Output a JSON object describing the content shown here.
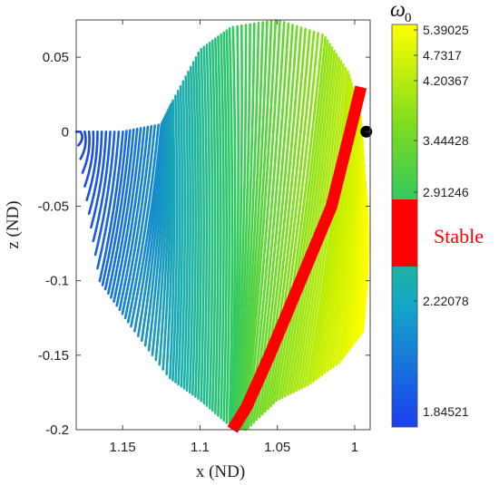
{
  "chart_data": {
    "type": "line",
    "title": "",
    "xlabel": "x (ND)",
    "ylabel": "z (ND)",
    "x_reversed": true,
    "xlim": [
      1.18,
      0.99
    ],
    "ylim": [
      -0.2,
      0.075
    ],
    "x_ticks": [
      1.15,
      1.1,
      1.05,
      1
    ],
    "x_tick_labels": [
      "1.15",
      "1.1",
      "1.05",
      "1"
    ],
    "y_ticks": [
      0.05,
      0,
      -0.05,
      -0.1,
      -0.15,
      -0.2
    ],
    "y_tick_labels": [
      "0.05",
      "0",
      "-0.05",
      "-0.1",
      "-0.15",
      "-0.2"
    ],
    "grid": false,
    "family": {
      "description_of_mark": "family of periodic orbit projections colored by omega_0",
      "orbit_count": 110,
      "outer_boundary_x": [
        1.18,
        1.15,
        1.125,
        1.118,
        1.1,
        1.08,
        1.05,
        1.02,
        1.004,
        0.996,
        0.992
      ],
      "outer_boundary_z": [
        0.0,
        0.0,
        0.005,
        0.02,
        0.055,
        0.07,
        0.075,
        0.065,
        0.04,
        0.01,
        -0.05
      ],
      "lower_boundary_x": [
        1.18,
        1.165,
        1.145,
        1.12,
        1.1,
        1.08,
        1.07,
        1.05,
        1.03,
        1.01,
        0.995
      ],
      "lower_boundary_z": [
        0.0,
        -0.1,
        -0.13,
        -0.165,
        -0.18,
        -0.198,
        -0.2,
        -0.18,
        -0.17,
        -0.155,
        -0.135
      ]
    },
    "stable_band": {
      "label": "Stable",
      "color": "#ff0000",
      "x": [
        0.996,
        1.003,
        1.015,
        1.035,
        1.055,
        1.07,
        1.079
      ],
      "z": [
        0.03,
        0.0,
        -0.05,
        -0.1,
        -0.15,
        -0.185,
        -0.2
      ]
    },
    "marker_point": {
      "x": 0.9925,
      "z": 0.0,
      "color": "#000000"
    },
    "colorbar": {
      "title": "ω",
      "subscript": "0",
      "ticks": [
        5.39025,
        4.7317,
        4.20367,
        3.44428,
        2.91246,
        2.22078,
        1.84521
      ],
      "tick_labels": [
        "5.39025",
        "4.7317",
        "4.20367",
        "3.44428",
        "2.91246",
        "2.22078",
        "1.84521"
      ],
      "stable_range_label": "Stable",
      "colors": [
        "#ffff00",
        "#c8f000",
        "#7ddc1e",
        "#2ec862",
        "#1aaeae",
        "#1480d6",
        "#1a3ff0"
      ]
    }
  }
}
